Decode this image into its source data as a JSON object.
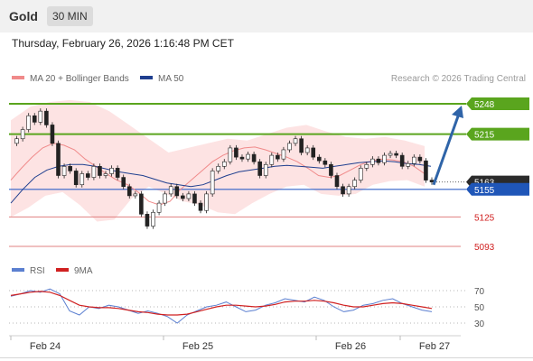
{
  "header": {
    "instrument": "Gold",
    "timeframe": "30 MIN",
    "timestamp": "Thursday, February 26, 2026 1:16:48 PM CET"
  },
  "colors": {
    "bollinger": "#f08a8a",
    "ma50": "#1f3f8f",
    "resistance": "#5aa51e",
    "support": "#e08080",
    "current_price_tag": "#2b2b2b",
    "arrow": "#2f64a8",
    "rsi": "#5b7fd0",
    "rsi_ma": "#d02020"
  },
  "chart_data": [
    {
      "type": "line",
      "name": "price-chart",
      "legend": [
        {
          "label": "MA 20 + Bollinger Bands",
          "color": "#f08a8a"
        },
        {
          "label": "MA 50",
          "color": "#1f3f8f"
        }
      ],
      "copyright": "Research © 2026 Trading Central",
      "ylim": [
        5080,
        5260
      ],
      "x_ticks": [
        "Feb 24",
        "Feb 25",
        "Feb 26",
        "Feb 27"
      ],
      "levels": [
        {
          "value": 5248,
          "label": "5248",
          "kind": "resistance"
        },
        {
          "value": 5215,
          "label": "5215",
          "kind": "resistance"
        },
        {
          "value": 5163,
          "label": "5163",
          "kind": "current"
        },
        {
          "value": 5155,
          "label": "5155",
          "kind": "pivot"
        },
        {
          "value": 5125,
          "label": "5125",
          "kind": "support"
        },
        {
          "value": 5093,
          "label": "5093",
          "kind": "support"
        }
      ],
      "price_path": [
        5205,
        5210,
        5220,
        5235,
        5228,
        5240,
        5225,
        5205,
        5170,
        5180,
        5175,
        5160,
        5172,
        5168,
        5180,
        5170,
        5172,
        5178,
        5168,
        5158,
        5148,
        5150,
        5128,
        5115,
        5130,
        5140,
        5150,
        5158,
        5148,
        5145,
        5150,
        5140,
        5132,
        5150,
        5175,
        5180,
        5185,
        5200,
        5190,
        5188,
        5193,
        5185,
        5170,
        5182,
        5192,
        5188,
        5198,
        5205,
        5210,
        5195,
        5200,
        5190,
        5186,
        5182,
        5170,
        5158,
        5150,
        5158,
        5165,
        5178,
        5182,
        5188,
        5184,
        5192,
        5194,
        5192,
        5180,
        5183,
        5190,
        5186,
        5165,
        5163
      ],
      "ma20_path": [
        5165,
        5178,
        5190,
        5200,
        5205,
        5203,
        5198,
        5188,
        5180,
        5172,
        5165,
        5160,
        5152,
        5142,
        5138,
        5142,
        5155,
        5165,
        5175,
        5185,
        5192,
        5197,
        5200,
        5201,
        5198,
        5194,
        5190,
        5185,
        5178,
        5170,
        5168,
        5170,
        5176,
        5182,
        5186,
        5188,
        5187,
        5185,
        5180,
        5172
      ],
      "ma50_path": [
        5140,
        5155,
        5168,
        5176,
        5180,
        5182,
        5182,
        5180,
        5177,
        5174,
        5172,
        5170,
        5166,
        5162,
        5160,
        5158,
        5160,
        5165,
        5170,
        5174,
        5176,
        5178,
        5180,
        5181,
        5180,
        5179,
        5178,
        5180,
        5182,
        5184,
        5185,
        5186,
        5185,
        5183,
        5182,
        5180
      ],
      "bb_upper_path": [
        5230,
        5245,
        5250,
        5252,
        5250,
        5240,
        5225,
        5210,
        5195,
        5200,
        5205,
        5210,
        5208,
        5215,
        5222,
        5225,
        5218,
        5212,
        5210,
        5212,
        5208,
        5202
      ],
      "bb_lower_path": [
        5125,
        5135,
        5148,
        5152,
        5138,
        5120,
        5122,
        5145,
        5158,
        5150,
        5142,
        5138,
        5130,
        5128,
        5140,
        5150,
        5158,
        5160,
        5150,
        5148,
        5150,
        5160,
        5164,
        5165,
        5158
      ]
    },
    {
      "type": "line",
      "name": "rsi-panel",
      "legend": [
        {
          "label": "RSI",
          "color": "#5b7fd0"
        },
        {
          "label": "9MA",
          "color": "#d02020"
        }
      ],
      "ylim": [
        25,
        75
      ],
      "y_ticks": [
        70,
        50,
        30
      ],
      "series": [
        {
          "name": "RSI",
          "values": [
            63,
            66,
            70,
            68,
            72,
            66,
            45,
            40,
            50,
            48,
            52,
            50,
            46,
            42,
            45,
            42,
            38,
            30,
            40,
            45,
            50,
            52,
            56,
            50,
            44,
            46,
            52,
            55,
            60,
            58,
            56,
            62,
            58,
            50,
            44,
            46,
            52,
            54,
            58,
            60,
            54,
            50,
            46,
            44
          ]
        },
        {
          "name": "9MA",
          "values": [
            64,
            66,
            68,
            69,
            68,
            64,
            58,
            52,
            50,
            49,
            49,
            48,
            46,
            44,
            43,
            41,
            40,
            40,
            41,
            44,
            47,
            50,
            52,
            52,
            51,
            50,
            51,
            53,
            56,
            57,
            57,
            58,
            57,
            55,
            52,
            50,
            50,
            52,
            54,
            55,
            54,
            52,
            50,
            48
          ]
        }
      ]
    }
  ]
}
